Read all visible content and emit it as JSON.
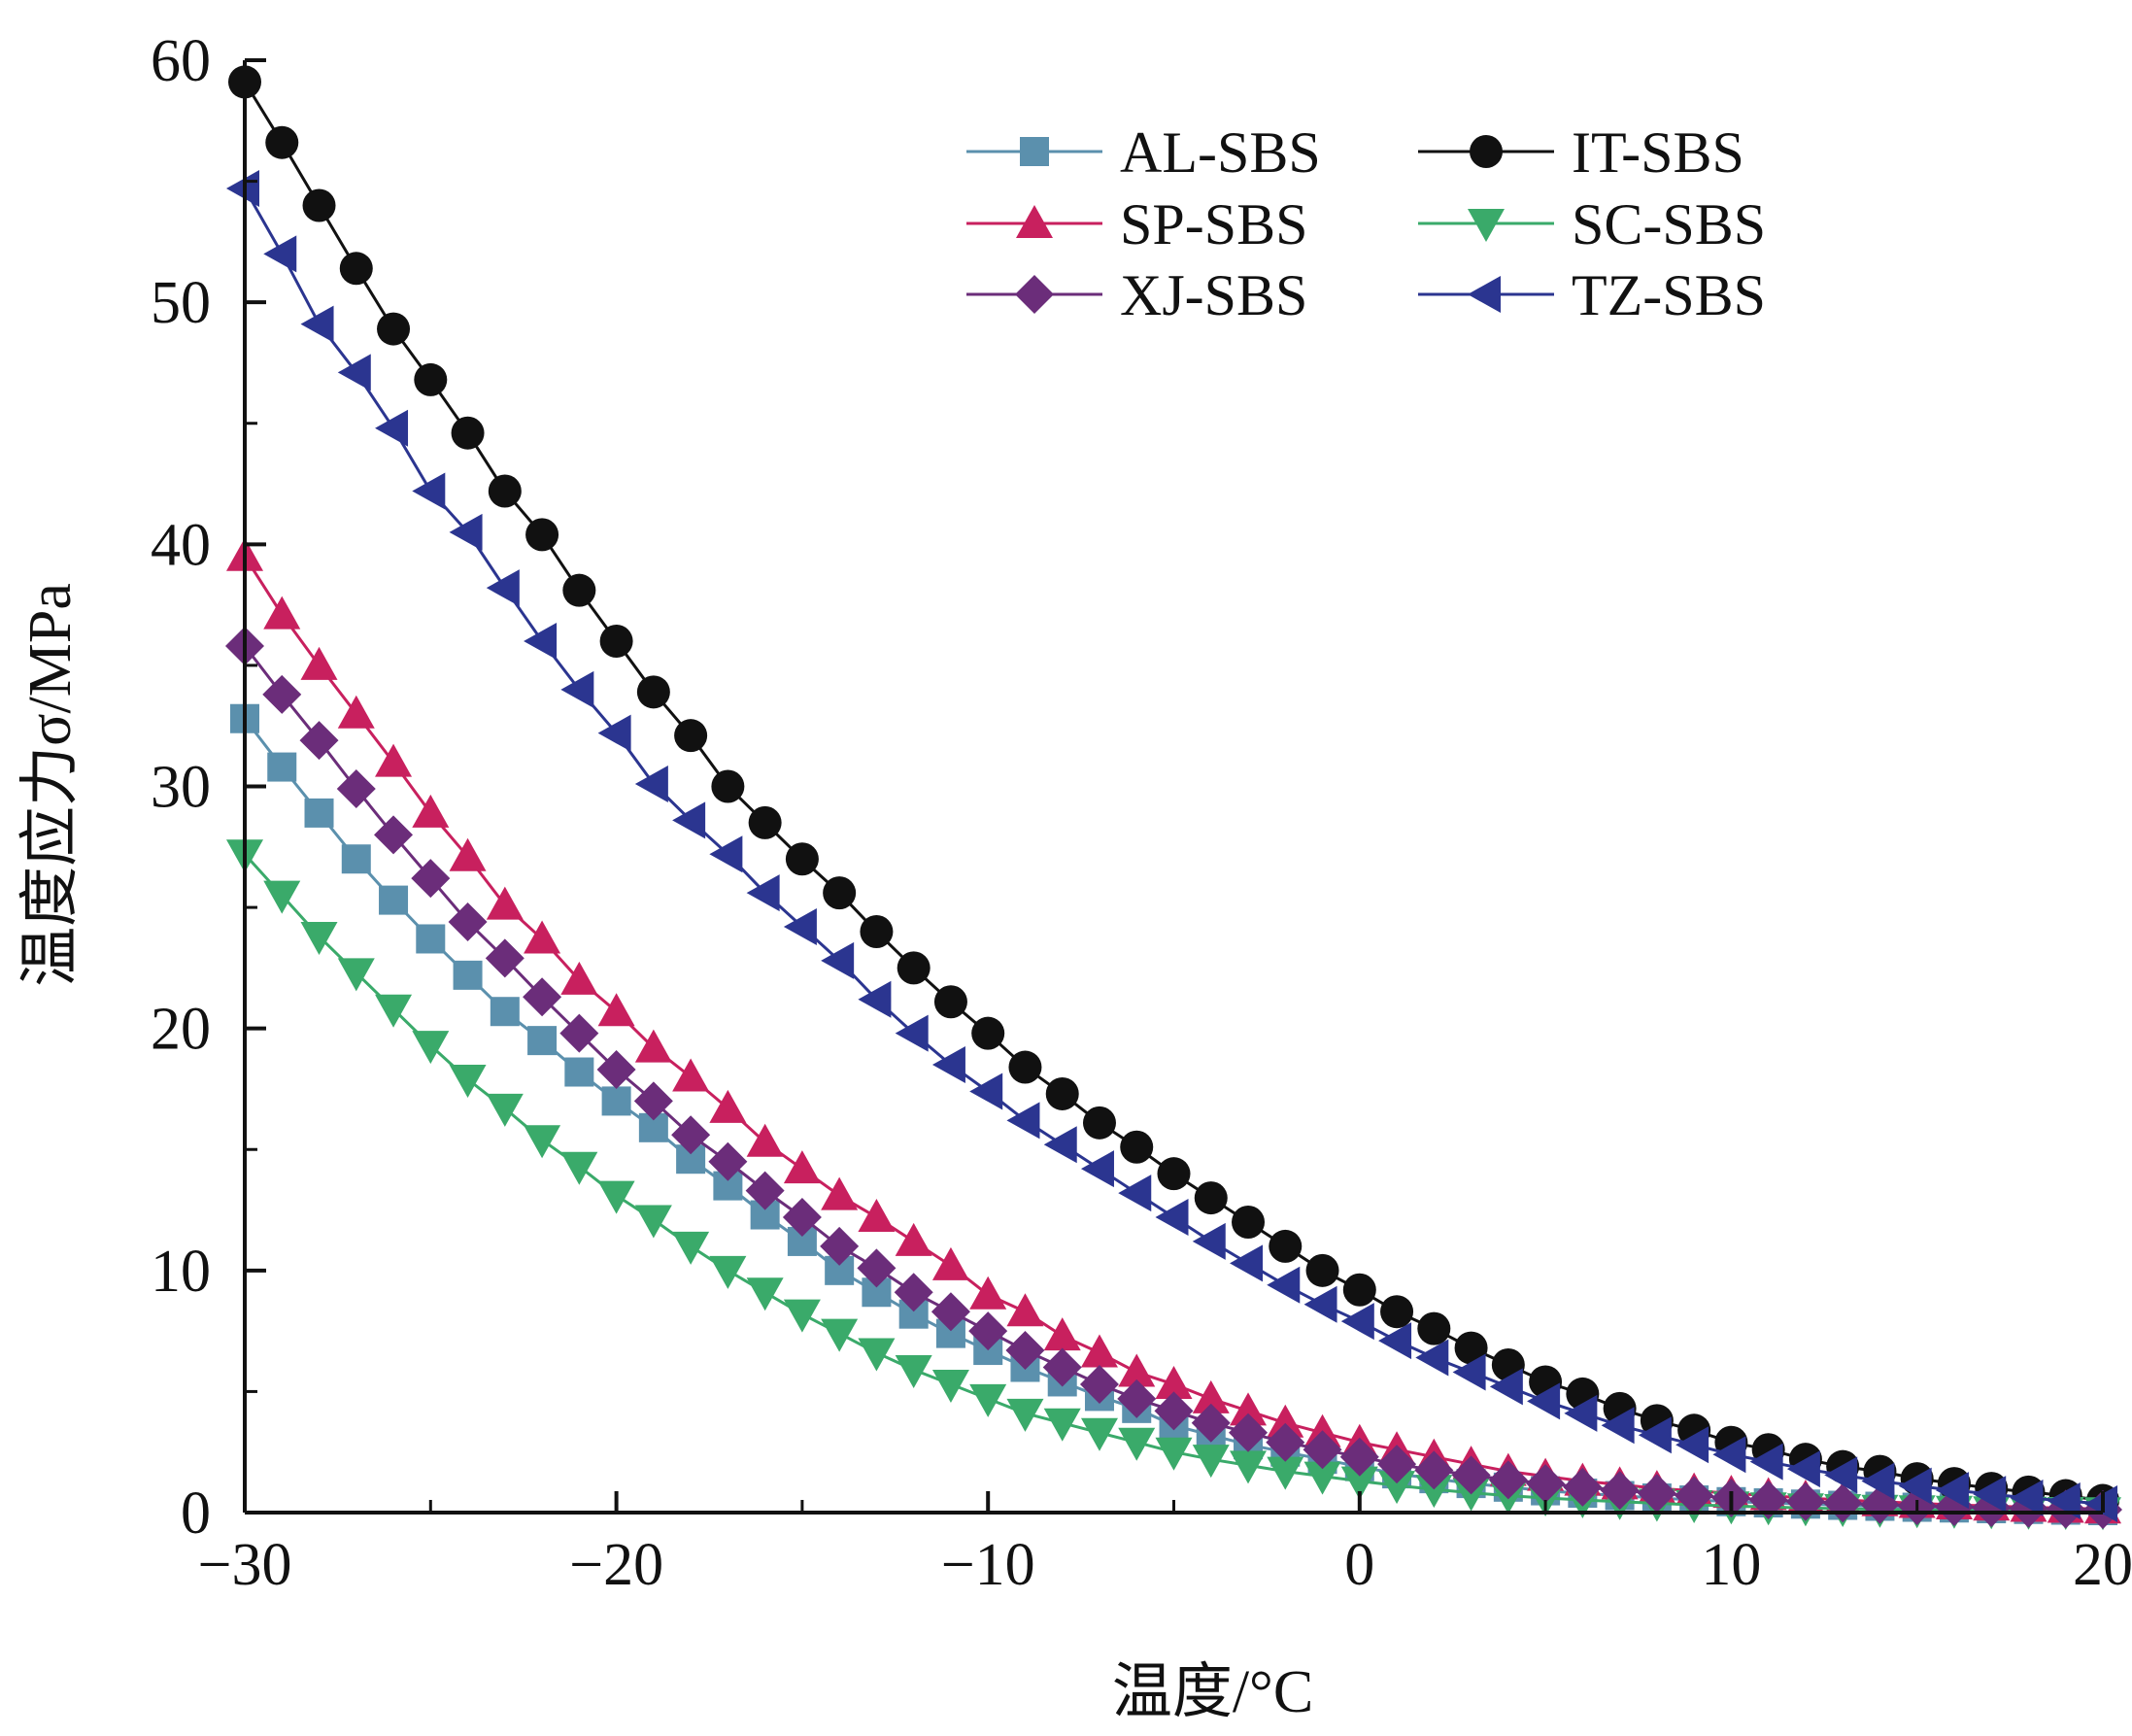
{
  "chart_data": {
    "type": "line",
    "xlabel": "温度/°C",
    "ylabel": "温度应力σ/MPa",
    "xlim": [
      -30,
      20
    ],
    "ylim": [
      0,
      60
    ],
    "xticks": [
      -30,
      -20,
      -10,
      0,
      10,
      20
    ],
    "xtick_labels": [
      "−30",
      "−20",
      "−10",
      "0",
      "10",
      "20"
    ],
    "yticks": [
      0,
      10,
      20,
      30,
      40,
      50,
      60
    ],
    "ytick_labels": [
      "0",
      "10",
      "20",
      "30",
      "40",
      "50",
      "60"
    ],
    "legend_position": "top-right",
    "grid": false,
    "x": [
      -30,
      -29,
      -28,
      -27,
      -26,
      -25,
      -24,
      -23,
      -22,
      -21,
      -20,
      -19,
      -18,
      -17,
      -16,
      -15,
      -14,
      -13,
      -12,
      -11,
      -10,
      -9,
      -8,
      -7,
      -6,
      -5,
      -4,
      -3,
      -2,
      -1,
      0,
      1,
      2,
      3,
      4,
      5,
      6,
      7,
      8,
      9,
      10,
      11,
      12,
      13,
      14,
      15,
      16,
      17,
      18,
      19,
      20
    ],
    "series": [
      {
        "name": "AL-SBS",
        "color": "#5b90ad",
        "marker": "square",
        "values": [
          32.8,
          30.8,
          28.9,
          27.0,
          25.3,
          23.7,
          22.2,
          20.7,
          19.5,
          18.2,
          17.0,
          15.9,
          14.6,
          13.5,
          12.3,
          11.2,
          10.0,
          9.1,
          8.2,
          7.4,
          6.7,
          6.0,
          5.4,
          4.8,
          4.3,
          3.6,
          3.2,
          2.8,
          2.5,
          2.2,
          1.9,
          1.6,
          1.4,
          1.2,
          1.05,
          0.9,
          0.8,
          0.7,
          0.6,
          0.52,
          0.45,
          0.4,
          0.35,
          0.3,
          0.26,
          0.22,
          0.19,
          0.16,
          0.13,
          0.1,
          0.08
        ]
      },
      {
        "name": "IT-SBS",
        "color": "#111111",
        "marker": "circle",
        "values": [
          59.1,
          56.6,
          54.0,
          51.4,
          48.9,
          46.8,
          44.6,
          42.2,
          40.4,
          38.1,
          36.0,
          33.9,
          32.1,
          30.0,
          28.5,
          27.0,
          25.6,
          24.0,
          22.5,
          21.1,
          19.8,
          18.4,
          17.3,
          16.1,
          15.1,
          14.0,
          13.0,
          12.0,
          11.0,
          10.0,
          9.2,
          8.3,
          7.6,
          6.8,
          6.1,
          5.4,
          4.9,
          4.3,
          3.8,
          3.4,
          2.9,
          2.6,
          2.2,
          1.9,
          1.7,
          1.4,
          1.2,
          1.0,
          0.85,
          0.7,
          0.5
        ]
      },
      {
        "name": "SP-SBS",
        "color": "#c8205e",
        "marker": "triangle-up",
        "values": [
          39.5,
          37.1,
          35.0,
          33.0,
          31.0,
          28.9,
          27.1,
          25.1,
          23.7,
          22.0,
          20.7,
          19.2,
          18.0,
          16.7,
          15.3,
          14.2,
          13.1,
          12.2,
          11.2,
          10.2,
          9.0,
          8.3,
          7.3,
          6.6,
          5.8,
          5.3,
          4.7,
          4.2,
          3.7,
          3.3,
          2.9,
          2.6,
          2.3,
          2.0,
          1.7,
          1.5,
          1.3,
          1.15,
          1.0,
          0.9,
          0.8,
          0.7,
          0.6,
          0.52,
          0.45,
          0.38,
          0.32,
          0.27,
          0.22,
          0.18,
          0.15
        ]
      },
      {
        "name": "SC-SBS",
        "color": "#3aaa6a",
        "marker": "triangle-down",
        "values": [
          27.2,
          25.5,
          23.8,
          22.3,
          20.8,
          19.3,
          17.9,
          16.7,
          15.4,
          14.3,
          13.1,
          12.1,
          11.0,
          10.0,
          9.1,
          8.2,
          7.4,
          6.6,
          5.9,
          5.3,
          4.7,
          4.1,
          3.7,
          3.3,
          2.9,
          2.5,
          2.2,
          1.95,
          1.7,
          1.5,
          1.3,
          1.12,
          0.96,
          0.82,
          0.7,
          0.6,
          0.52,
          0.45,
          0.38,
          0.32,
          0.27,
          0.23,
          0.19,
          0.16,
          0.13,
          0.11,
          0.09,
          0.07,
          0.05,
          0.04,
          0.03
        ]
      },
      {
        "name": "XJ-SBS",
        "color": "#6b2d7a",
        "marker": "diamond",
        "values": [
          35.8,
          33.8,
          31.9,
          29.9,
          28.0,
          26.2,
          24.4,
          22.9,
          21.3,
          19.8,
          18.3,
          17.0,
          15.6,
          14.5,
          13.3,
          12.2,
          11.0,
          10.1,
          9.1,
          8.3,
          7.5,
          6.7,
          6.0,
          5.3,
          4.7,
          4.2,
          3.7,
          3.3,
          2.9,
          2.6,
          2.3,
          2.0,
          1.75,
          1.55,
          1.35,
          1.2,
          1.05,
          0.92,
          0.8,
          0.7,
          0.6,
          0.52,
          0.45,
          0.39,
          0.33,
          0.28,
          0.24,
          0.2,
          0.17,
          0.14,
          0.12
        ]
      },
      {
        "name": "TZ-SBS",
        "color": "#2b3590",
        "marker": "triangle-left",
        "values": [
          54.7,
          52.0,
          49.1,
          47.1,
          44.8,
          42.2,
          40.5,
          38.2,
          36.0,
          34.0,
          32.2,
          30.1,
          28.6,
          27.2,
          25.6,
          24.2,
          22.8,
          21.2,
          19.8,
          18.5,
          17.4,
          16.2,
          15.2,
          14.2,
          13.2,
          12.2,
          11.2,
          10.3,
          9.4,
          8.6,
          7.9,
          7.1,
          6.4,
          5.8,
          5.2,
          4.6,
          4.1,
          3.6,
          3.2,
          2.8,
          2.4,
          2.1,
          1.8,
          1.55,
          1.3,
          1.1,
          0.92,
          0.76,
          0.6,
          0.48,
          0.36
        ]
      }
    ]
  }
}
